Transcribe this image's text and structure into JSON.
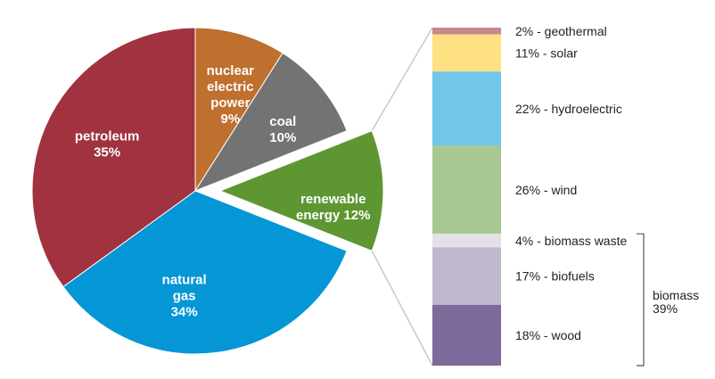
{
  "chart_data": [
    {
      "type": "pie",
      "slices": [
        {
          "label_lines": [
            "nuclear",
            "electric",
            "power",
            "9%"
          ],
          "value": 9,
          "color": "#BF6F2E"
        },
        {
          "label_lines": [
            "coal",
            "10%"
          ],
          "value": 10,
          "color": "#737373"
        },
        {
          "label_lines": [
            "renewable",
            "energy 12%"
          ],
          "value": 12,
          "color": "#5E9732",
          "exploded": true
        },
        {
          "label_lines": [
            "natural",
            "gas",
            "34%"
          ],
          "value": 34,
          "color": "#0596D6"
        },
        {
          "label_lines": [
            "petroleum",
            "35%"
          ],
          "value": 35,
          "color": "#A0333F"
        }
      ]
    },
    {
      "type": "bar",
      "stacked": true,
      "segments": [
        {
          "label": "2% - geothermal",
          "value": 2,
          "color": "#C8878A"
        },
        {
          "label": "11% - solar",
          "value": 11,
          "color": "#FFE183"
        },
        {
          "label": "22% - hydroelectric",
          "value": 22,
          "color": "#72C6E8"
        },
        {
          "label": "26% - wind",
          "value": 26,
          "color": "#A8C791"
        },
        {
          "label": "4% - biomass waste",
          "value": 4,
          "color": "#E4E0EA"
        },
        {
          "label": "17% - biofuels",
          "value": 17,
          "color": "#C1B8D0"
        },
        {
          "label": "18% - wood",
          "value": 18,
          "color": "#7C6A9A"
        }
      ],
      "group": {
        "label_lines": [
          "biomass",
          "39%"
        ],
        "segments": [
          "4% - biomass waste",
          "17% - biofuels",
          "18% - wood"
        ]
      }
    }
  ]
}
